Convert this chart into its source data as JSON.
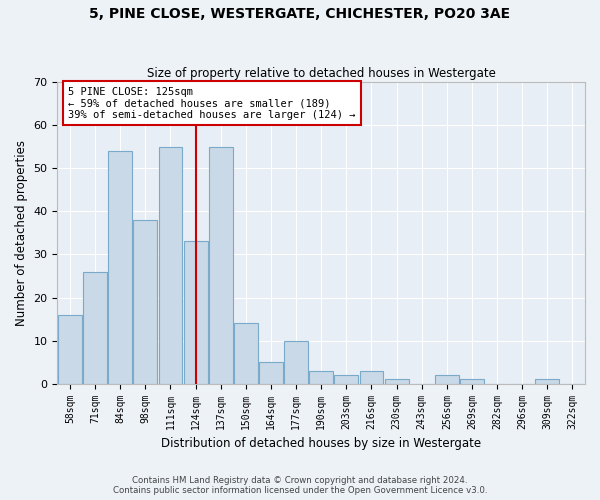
{
  "title1": "5, PINE CLOSE, WESTERGATE, CHICHESTER, PO20 3AE",
  "title2": "Size of property relative to detached houses in Westergate",
  "xlabel": "Distribution of detached houses by size in Westergate",
  "ylabel": "Number of detached properties",
  "categories": [
    "58sqm",
    "71sqm",
    "84sqm",
    "98sqm",
    "111sqm",
    "124sqm",
    "137sqm",
    "150sqm",
    "164sqm",
    "177sqm",
    "190sqm",
    "203sqm",
    "216sqm",
    "230sqm",
    "243sqm",
    "256sqm",
    "269sqm",
    "282sqm",
    "296sqm",
    "309sqm",
    "322sqm"
  ],
  "values": [
    16,
    26,
    54,
    38,
    55,
    33,
    55,
    14,
    5,
    10,
    3,
    2,
    3,
    1,
    0,
    2,
    1,
    0,
    0,
    1,
    0
  ],
  "bar_color": "#c9d9e8",
  "bar_edge_color": "#7aaaca",
  "vline_x": 5,
  "vline_color": "#cc0000",
  "ylim": [
    0,
    70
  ],
  "yticks": [
    0,
    10,
    20,
    30,
    40,
    50,
    60,
    70
  ],
  "annotation_text": "5 PINE CLOSE: 125sqm\n← 59% of detached houses are smaller (189)\n39% of semi-detached houses are larger (124) →",
  "annotation_box_color": "#ffffff",
  "annotation_box_edge": "#cc0000",
  "footer1": "Contains HM Land Registry data © Crown copyright and database right 2024.",
  "footer2": "Contains public sector information licensed under the Open Government Licence v3.0.",
  "bg_color": "#edf2f7",
  "plot_bg_color": "#e8eef5"
}
